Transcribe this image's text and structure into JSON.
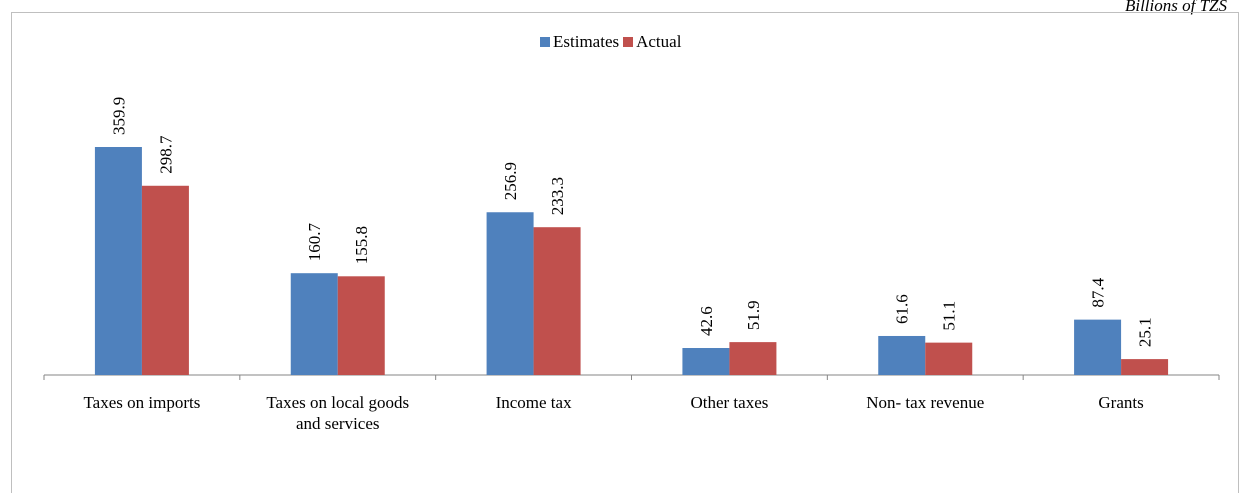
{
  "unit_note": "Billions of TZS",
  "legend": {
    "estimates": "Estimates",
    "actual": "Actual"
  },
  "colors": {
    "estimates": "#4f81bd",
    "actual": "#c0504d",
    "axis": "#868686"
  },
  "chart_data": {
    "type": "bar",
    "categories": [
      [
        "Taxes on imports"
      ],
      [
        "Taxes on local goods",
        "and services"
      ],
      [
        "Income tax"
      ],
      [
        "Other taxes"
      ],
      [
        "Non- tax revenue"
      ],
      [
        "Grants"
      ]
    ],
    "series": [
      {
        "name": "Estimates",
        "values": [
          359.9,
          160.7,
          256.9,
          42.6,
          61.6,
          87.4
        ]
      },
      {
        "name": "Actual",
        "values": [
          298.7,
          155.8,
          233.3,
          51.9,
          51.1,
          25.1
        ]
      }
    ],
    "ylim": [
      0,
      359.9
    ],
    "legend_position": "top-center",
    "grid": false
  }
}
